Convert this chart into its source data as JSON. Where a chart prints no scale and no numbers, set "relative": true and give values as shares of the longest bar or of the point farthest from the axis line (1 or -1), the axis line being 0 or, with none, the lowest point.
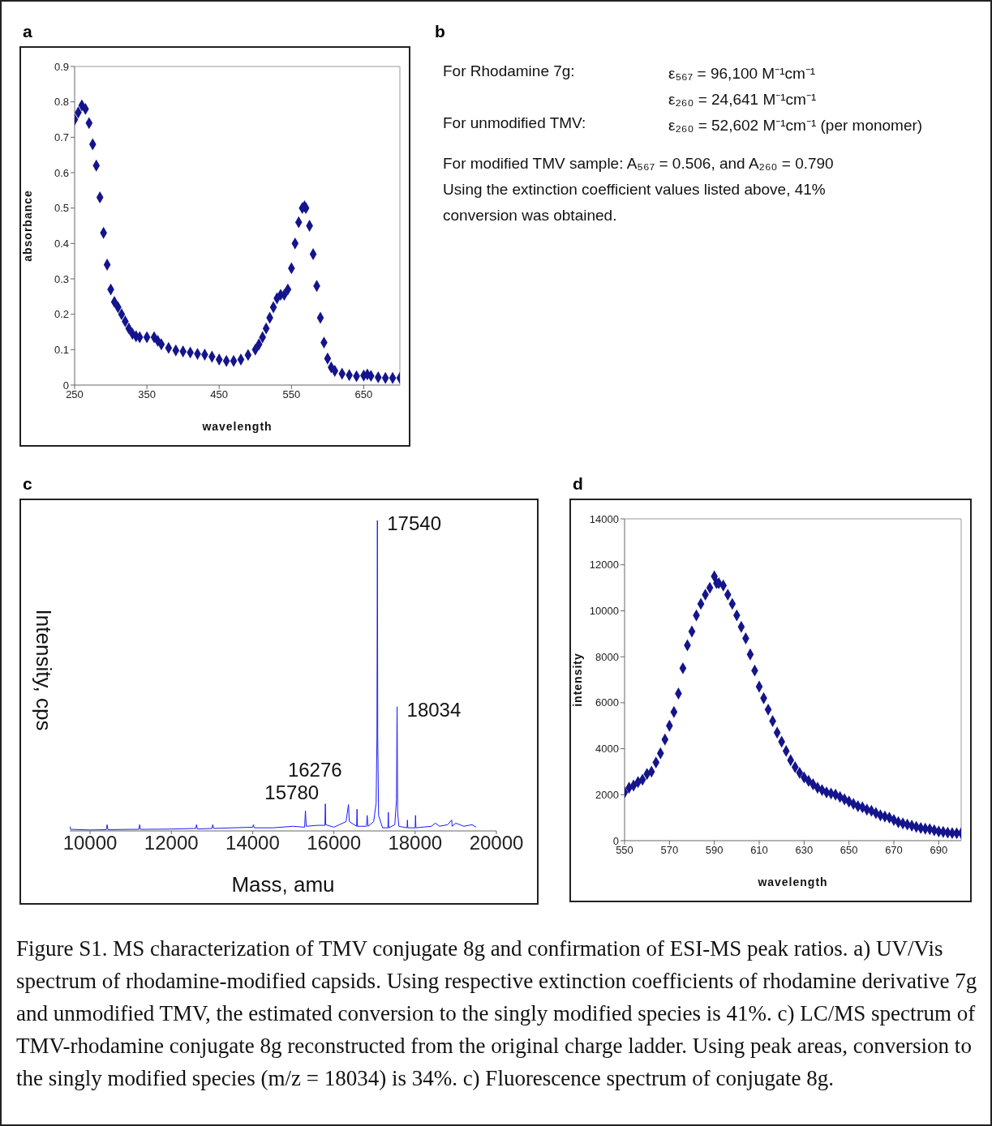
{
  "chart_data": [
    {
      "type": "scatter",
      "title": "a",
      "xlabel": "wavelength",
      "ylabel": "absorbance",
      "marker": "diamond",
      "xlim": [
        250,
        700
      ],
      "xticks": [
        250,
        350,
        450,
        550,
        650
      ],
      "ylim": [
        0,
        0.9
      ],
      "yticks": [
        0,
        0.1,
        0.2,
        0.3,
        0.4,
        0.5,
        0.6,
        0.7,
        0.8,
        0.9
      ],
      "series": [
        {
          "color": "#14148c",
          "x": [
            250,
            255,
            260,
            265,
            270,
            275,
            280,
            285,
            290,
            295,
            300,
            305,
            310,
            315,
            320,
            325,
            330,
            335,
            340,
            350,
            360,
            365,
            370,
            380,
            390,
            400,
            410,
            420,
            430,
            440,
            450,
            460,
            470,
            480,
            490,
            500,
            505,
            510,
            515,
            520,
            525,
            530,
            535,
            540,
            545,
            550,
            555,
            560,
            565,
            568,
            570,
            575,
            580,
            585,
            590,
            595,
            600,
            605,
            610,
            620,
            630,
            640,
            650,
            655,
            660,
            670,
            680,
            690,
            700
          ],
          "values": [
            0.75,
            0.77,
            0.79,
            0.78,
            0.74,
            0.68,
            0.62,
            0.53,
            0.43,
            0.34,
            0.27,
            0.235,
            0.22,
            0.2,
            0.18,
            0.16,
            0.145,
            0.138,
            0.135,
            0.135,
            0.135,
            0.125,
            0.115,
            0.105,
            0.098,
            0.095,
            0.092,
            0.088,
            0.086,
            0.08,
            0.072,
            0.068,
            0.068,
            0.072,
            0.085,
            0.1,
            0.115,
            0.135,
            0.16,
            0.19,
            0.22,
            0.245,
            0.255,
            0.255,
            0.27,
            0.33,
            0.4,
            0.46,
            0.5,
            0.505,
            0.5,
            0.45,
            0.37,
            0.28,
            0.19,
            0.12,
            0.075,
            0.05,
            0.04,
            0.032,
            0.028,
            0.025,
            0.027,
            0.03,
            0.026,
            0.022,
            0.02,
            0.02,
            0.02
          ]
        }
      ]
    },
    {
      "type": "other",
      "title": "b",
      "annotations": [
        "For Rhodamine 7g:",
        "ε₅₆₇ = 96,100 M⁻¹cm⁻¹",
        "ε₂₆₀ = 24,641 M⁻¹cm⁻¹",
        "For unmodified TMV:",
        "ε₂₆₀ = 52,602 M⁻¹cm⁻¹ (per monomer)",
        "For modified TMV sample:    A₅₆₇ = 0.506, and  A₂₆₀ = 0.790",
        "Using the extinction coefficient values listed above, 41%",
        "conversion was obtained."
      ]
    },
    {
      "type": "line",
      "title": "c",
      "xlabel": "Mass, amu",
      "ylabel": "Intensity, cps",
      "relative": true,
      "marker": "none",
      "xlim": [
        9500,
        20000
      ],
      "xticks": [
        10000,
        12000,
        14000,
        16000,
        18000,
        20000
      ],
      "annotations": [
        {
          "text": "17540",
          "x": 17071,
          "y": 1
        },
        {
          "text": "18034",
          "x": 17556,
          "y": 0.4
        },
        {
          "text": "16276",
          "x": 16360,
          "y": 0.085
        },
        {
          "text": "15780",
          "x": 15790,
          "y": 0.087
        }
      ],
      "series": [
        {
          "color": "#1a1aff",
          "x": [
            9500,
            9520,
            10000,
            10400,
            10420,
            10440,
            11000,
            11200,
            11220,
            11240,
            12000,
            12600,
            12620,
            12640,
            13000,
            13020,
            13040,
            14000,
            14020,
            14040,
            14500,
            15000,
            15280,
            15300,
            15320,
            15600,
            15780,
            15790,
            15800,
            16000,
            16300,
            16360,
            16380,
            16560,
            16570,
            16580,
            16800,
            16820,
            16840,
            16980,
            17040,
            17060,
            17071,
            17080,
            17100,
            17200,
            17330,
            17340,
            17350,
            17500,
            17540,
            17556,
            17570,
            17600,
            17800,
            17810,
            17820,
            18000,
            18010,
            18020,
            18400,
            18500,
            18600,
            18800,
            18900,
            18910,
            19000,
            19200,
            19400,
            19500
          ],
          "values": [
            0.015,
            0.005,
            0.003,
            0.004,
            0.02,
            0.004,
            0.005,
            0.005,
            0.02,
            0.005,
            0.006,
            0.008,
            0.02,
            0.006,
            0.008,
            0.02,
            0.008,
            0.012,
            0.02,
            0.01,
            0.01,
            0.015,
            0.012,
            0.065,
            0.015,
            0.018,
            0.018,
            0.087,
            0.02,
            0.012,
            0.03,
            0.085,
            0.03,
            0.015,
            0.07,
            0.015,
            0.015,
            0.05,
            0.015,
            0.03,
            0.09,
            0.3,
            1,
            0.3,
            0.05,
            0.01,
            0.01,
            0.06,
            0.01,
            0.02,
            0.1,
            0.4,
            0.06,
            0.015,
            0.01,
            0.035,
            0.01,
            0.01,
            0.05,
            0.01,
            0.015,
            0.025,
            0.015,
            0.02,
            0.035,
            0.015,
            0.025,
            0.015,
            0.02,
            0.012
          ]
        }
      ]
    },
    {
      "type": "scatter",
      "title": "d",
      "xlabel": "wavelength",
      "ylabel": "intensity",
      "marker": "diamond",
      "xlim": [
        550,
        700
      ],
      "xticks": [
        550,
        570,
        590,
        610,
        630,
        650,
        670,
        690
      ],
      "ylim": [
        0,
        14000
      ],
      "yticks": [
        0,
        2000,
        4000,
        6000,
        8000,
        10000,
        12000,
        14000
      ],
      "series": [
        {
          "color": "#14148c",
          "x": [
            550,
            552,
            554,
            556,
            558,
            560,
            562,
            564,
            566,
            568,
            570,
            572,
            574,
            576,
            578,
            580,
            582,
            584,
            586,
            588,
            590,
            591,
            592,
            594,
            596,
            598,
            600,
            602,
            604,
            606,
            608,
            610,
            612,
            614,
            616,
            618,
            620,
            622,
            624,
            626,
            628,
            630,
            632,
            634,
            636,
            638,
            640,
            642,
            644,
            646,
            648,
            650,
            652,
            654,
            656,
            658,
            660,
            662,
            664,
            666,
            668,
            670,
            672,
            674,
            676,
            678,
            680,
            682,
            684,
            686,
            688,
            690,
            692,
            694,
            696,
            698,
            700
          ],
          "values": [
            2100,
            2300,
            2400,
            2550,
            2650,
            2900,
            3000,
            3400,
            3800,
            4400,
            5000,
            5600,
            6400,
            7500,
            8500,
            9100,
            9800,
            10300,
            10700,
            11000,
            11500,
            11200,
            11200,
            11100,
            10700,
            10300,
            9800,
            9300,
            8800,
            8100,
            7400,
            6700,
            6200,
            5700,
            5200,
            4700,
            4300,
            3900,
            3500,
            3200,
            2950,
            2750,
            2600,
            2450,
            2300,
            2200,
            2100,
            2050,
            2000,
            1900,
            1800,
            1700,
            1600,
            1500,
            1450,
            1350,
            1300,
            1200,
            1100,
            1050,
            1000,
            900,
            800,
            750,
            700,
            650,
            600,
            550,
            520,
            500,
            450,
            400,
            380,
            350,
            330,
            320,
            330
          ]
        }
      ]
    },
    {
      "type": "other",
      "annotations": [
        "Figure S1.  MS characterization of TMV conjugate 8g and confirmation of ESI-MS peak ratios. a)  UV/Vis spectrum of rhodamine-modified capsids. Using respective extinction coefficients of rhodamine derivative 7g and unmodified TMV, the estimated conversion to the singly modified species is 41%. c) LC/MS spectrum of TMV-rhodamine conjugate 8g reconstructed from the original charge ladder. Using peak areas, conversion to the singly modified species (m/z = 18034) is 34%. c)  Fluorescence spectrum of conjugate 8g."
      ]
    }
  ]
}
